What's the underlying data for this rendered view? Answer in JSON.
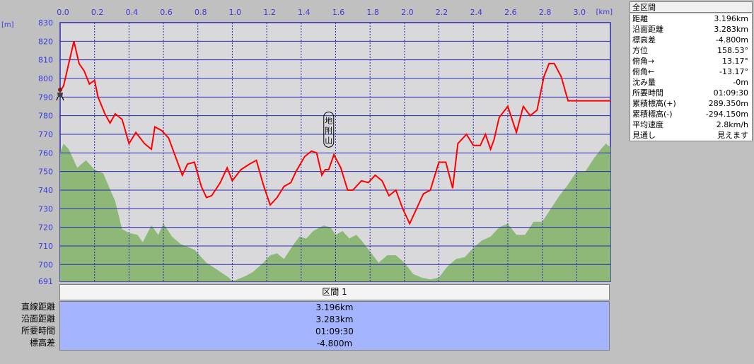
{
  "chart_data": {
    "type": "area",
    "x_unit": "[km]",
    "y_unit": "[m]",
    "xlim": [
      0.0,
      3.196
    ],
    "ylim": [
      691,
      830
    ],
    "x_ticks": [
      "0.0",
      "0.2",
      "0.4",
      "0.6",
      "0.8",
      "1.0",
      "1.2",
      "1.4",
      "1.6",
      "1.8",
      "2.0",
      "2.2",
      "2.4",
      "2.6",
      "2.8",
      "3.0"
    ],
    "y_ticks": [
      "830",
      "820",
      "810",
      "800",
      "790",
      "780",
      "770",
      "760",
      "750",
      "740",
      "730",
      "720",
      "710",
      "700",
      "691"
    ],
    "series": [
      {
        "role": "route-elevation",
        "color": "#ff0000",
        "x": [
          0.0,
          0.02,
          0.05,
          0.08,
          0.11,
          0.14,
          0.17,
          0.2,
          0.22,
          0.26,
          0.29,
          0.32,
          0.36,
          0.4,
          0.44,
          0.49,
          0.53,
          0.55,
          0.59,
          0.63,
          0.67,
          0.71,
          0.74,
          0.78,
          0.82,
          0.85,
          0.88,
          0.93,
          0.97,
          1.0,
          1.05,
          1.1,
          1.14,
          1.18,
          1.22,
          1.26,
          1.3,
          1.34,
          1.37,
          1.42,
          1.46,
          1.49,
          1.52,
          1.54,
          1.56,
          1.59,
          1.63,
          1.67,
          1.7,
          1.75,
          1.79,
          1.83,
          1.87,
          1.91,
          1.95,
          1.99,
          2.03,
          2.07,
          2.11,
          2.15,
          2.2,
          2.24,
          2.28,
          2.31,
          2.36,
          2.4,
          2.44,
          2.47,
          2.5,
          2.52,
          2.55,
          2.6,
          2.65,
          2.69,
          2.73,
          2.77,
          2.81,
          2.84,
          2.87,
          2.91,
          2.95,
          2.99,
          3.03,
          3.06,
          3.1,
          3.13,
          3.16,
          3.18,
          3.196
        ],
        "y": [
          793,
          796,
          808,
          820,
          808,
          804,
          797,
          799,
          790,
          781,
          776,
          781,
          778,
          765,
          771,
          765,
          762,
          774,
          772,
          768,
          758,
          748,
          754,
          755,
          742,
          736,
          737,
          744,
          752,
          745,
          751,
          754,
          756,
          743,
          732,
          736,
          742,
          744,
          750,
          758,
          761,
          760,
          748,
          751,
          751,
          759,
          752,
          740,
          740,
          745,
          744,
          748,
          745,
          737,
          740,
          730,
          722,
          730,
          738,
          740,
          755,
          755,
          741,
          765,
          770,
          764,
          764,
          770,
          762,
          767,
          779,
          785,
          771,
          785,
          780,
          783,
          801,
          808,
          808,
          801,
          788,
          788,
          788,
          788,
          788,
          788,
          788,
          788,
          788
        ]
      },
      {
        "role": "terrain-profile",
        "color": "#8db878",
        "x": [
          0.0,
          0.02,
          0.05,
          0.1,
          0.15,
          0.2,
          0.25,
          0.32,
          0.36,
          0.4,
          0.45,
          0.48,
          0.53,
          0.57,
          0.6,
          0.65,
          0.7,
          0.78,
          0.85,
          0.9,
          0.98,
          1.0,
          1.03,
          1.08,
          1.12,
          1.18,
          1.22,
          1.26,
          1.3,
          1.35,
          1.39,
          1.43,
          1.47,
          1.53,
          1.57,
          1.6,
          1.64,
          1.68,
          1.72,
          1.75,
          1.8,
          1.85,
          1.9,
          1.95,
          2.0,
          2.05,
          2.1,
          2.15,
          2.2,
          2.25,
          2.3,
          2.35,
          2.4,
          2.45,
          2.5,
          2.55,
          2.6,
          2.65,
          2.7,
          2.75,
          2.8,
          2.85,
          2.9,
          2.95,
          3.0,
          3.05,
          3.1,
          3.14,
          3.17,
          3.196
        ],
        "y": [
          760,
          765,
          762,
          752,
          756,
          751,
          749,
          734,
          719,
          717,
          716,
          712,
          721,
          716,
          722,
          715,
          711,
          708,
          701,
          698,
          693,
          691,
          692,
          694,
          696,
          701,
          705,
          706,
          703,
          710,
          715,
          714,
          718,
          721,
          720,
          716,
          718,
          714,
          716,
          713,
          707,
          701,
          705,
          705,
          701,
          695,
          693,
          692,
          693,
          699,
          703,
          704,
          709,
          713,
          715,
          720,
          722,
          716,
          716,
          723,
          723,
          730,
          737,
          743,
          750,
          750,
          757,
          762,
          765,
          763
        ]
      }
    ],
    "annotations": [
      {
        "text": "地附山",
        "x": 1.56,
        "y": 760
      }
    ]
  },
  "info_panel": {
    "title": "全区間",
    "rows": [
      {
        "label": "距離",
        "value": "3.196km"
      },
      {
        "label": "沿面距離",
        "value": "3.283km"
      },
      {
        "label": "標高差",
        "value": "-4.800m"
      },
      {
        "label": "方位",
        "value": "158.53°"
      },
      {
        "label": "俯角→",
        "value": "13.17°"
      },
      {
        "label": "俯角←",
        "value": "-13.17°"
      },
      {
        "label": "沈み量",
        "value": "-0m"
      },
      {
        "label": "所要時間",
        "value": "01:09:30"
      },
      {
        "label": "累積標高(+)",
        "value": "289.350m"
      },
      {
        "label": "累積標高(-)",
        "value": "-294.150m"
      },
      {
        "label": "平均速度",
        "value": "2.8km/h"
      },
      {
        "label": "見通し",
        "value": "見えます"
      }
    ]
  },
  "section_table": {
    "header": "区間 1",
    "labels": [
      "直線距離",
      "沿面距離",
      "所要時間",
      "標高差"
    ],
    "values": [
      "3.196km",
      "3.283km",
      "01:09:30",
      "-4.800m"
    ]
  }
}
